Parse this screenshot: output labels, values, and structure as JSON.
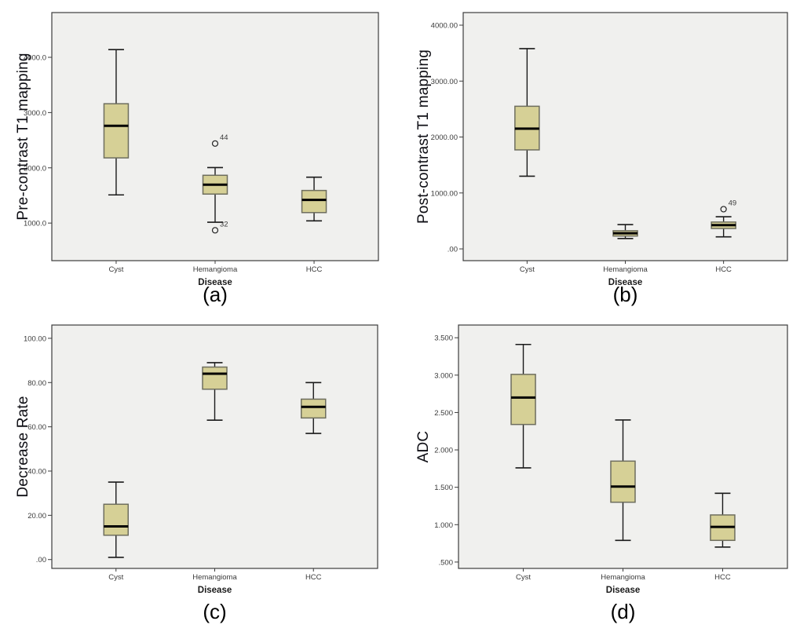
{
  "colors": {
    "page_bg": "#ffffff",
    "plot_bg": "#f0f0ee",
    "frame": "#3c3c3c",
    "box_fill": "#d6d096",
    "box_border": "#6e6e5e",
    "median": "#000000",
    "whisker": "#1a1a1a",
    "tick_text": "#3a3a3a",
    "outlier_stroke": "#222222"
  },
  "chart_data": [
    {
      "id": "a",
      "type": "box",
      "caption": "(a)",
      "ylabel": "Pre-contrast T1 mapping",
      "xlabel": "Disease",
      "categories": [
        "Cyst",
        "Hemangioma",
        "HCC"
      ],
      "ylim": [
        320,
        4810
      ],
      "yticks": [
        {
          "value": 1000,
          "label": "1000.0"
        },
        {
          "value": 2000,
          "label": "2000.0"
        },
        {
          "value": 3000,
          "label": "3000.0"
        },
        {
          "value": 4000,
          "label": "4000.0"
        }
      ],
      "boxes": [
        {
          "category": "Cyst",
          "whisker_low": 1510,
          "q1": 2180,
          "median": 2760,
          "q3": 3160,
          "whisker_high": 4140,
          "outliers": []
        },
        {
          "category": "Hemangioma",
          "whisker_low": 1015,
          "q1": 1525,
          "median": 1695,
          "q3": 1865,
          "whisker_high": 2005,
          "outliers": [
            {
              "value": 2440,
              "label": "44"
            },
            {
              "value": 870,
              "label": "32"
            }
          ]
        },
        {
          "category": "HCC",
          "whisker_low": 1040,
          "q1": 1190,
          "median": 1420,
          "q3": 1590,
          "whisker_high": 1830,
          "outliers": []
        }
      ]
    },
    {
      "id": "b",
      "type": "box",
      "caption": "(b)",
      "ylabel": "Post-contrast T1 mapping",
      "xlabel": "Disease",
      "categories": [
        "Cyst",
        "Hemangioma",
        "HCC"
      ],
      "ylim": [
        -210,
        4225
      ],
      "yticks": [
        {
          "value": 0,
          "label": ".00"
        },
        {
          "value": 1000,
          "label": "1000.00"
        },
        {
          "value": 2000,
          "label": "2000.00"
        },
        {
          "value": 3000,
          "label": "3000.00"
        },
        {
          "value": 4000,
          "label": "4000.00"
        }
      ],
      "boxes": [
        {
          "category": "Cyst",
          "whisker_low": 1300,
          "q1": 1770,
          "median": 2150,
          "q3": 2550,
          "whisker_high": 3580,
          "outliers": []
        },
        {
          "category": "Hemangioma",
          "whisker_low": 185,
          "q1": 230,
          "median": 280,
          "q3": 325,
          "whisker_high": 435,
          "outliers": []
        },
        {
          "category": "HCC",
          "whisker_low": 215,
          "q1": 365,
          "median": 425,
          "q3": 480,
          "whisker_high": 575,
          "outliers": [
            {
              "value": 710,
              "label": "49"
            }
          ]
        }
      ]
    },
    {
      "id": "c",
      "type": "box",
      "caption": "(c)",
      "ylabel": "Decrease Rate",
      "xlabel": "Disease",
      "categories": [
        "Cyst",
        "Hemangioma",
        "HCC"
      ],
      "ylim": [
        -4,
        106
      ],
      "yticks": [
        {
          "value": 0,
          "label": ".00"
        },
        {
          "value": 20,
          "label": "20.00"
        },
        {
          "value": 40,
          "label": "40.00"
        },
        {
          "value": 60,
          "label": "60.00"
        },
        {
          "value": 80,
          "label": "80.00"
        },
        {
          "value": 100,
          "label": "100.00"
        }
      ],
      "boxes": [
        {
          "category": "Cyst",
          "whisker_low": 1,
          "q1": 11,
          "median": 15,
          "q3": 25,
          "whisker_high": 35,
          "outliers": []
        },
        {
          "category": "Hemangioma",
          "whisker_low": 63,
          "q1": 77,
          "median": 84,
          "q3": 87,
          "whisker_high": 89,
          "outliers": []
        },
        {
          "category": "HCC",
          "whisker_low": 57,
          "q1": 64,
          "median": 69,
          "q3": 72.5,
          "whisker_high": 80,
          "outliers": []
        }
      ]
    },
    {
      "id": "d",
      "type": "box",
      "caption": "(d)",
      "ylabel": "ADC",
      "xlabel": "Disease",
      "categories": [
        "Cyst",
        "Hemangioma",
        "HCC"
      ],
      "ylim": [
        0.415,
        3.67
      ],
      "yticks": [
        {
          "value": 0.5,
          "label": ".500"
        },
        {
          "value": 1.0,
          "label": "1.000"
        },
        {
          "value": 1.5,
          "label": "1.500"
        },
        {
          "value": 2.0,
          "label": "2.000"
        },
        {
          "value": 2.5,
          "label": "2.500"
        },
        {
          "value": 3.0,
          "label": "3.000"
        },
        {
          "value": 3.5,
          "label": "3.500"
        }
      ],
      "boxes": [
        {
          "category": "Cyst",
          "whisker_low": 1.76,
          "q1": 2.34,
          "median": 2.7,
          "q3": 3.01,
          "whisker_high": 3.41,
          "outliers": []
        },
        {
          "category": "Hemangioma",
          "whisker_low": 0.79,
          "q1": 1.3,
          "median": 1.51,
          "q3": 1.85,
          "whisker_high": 2.4,
          "outliers": []
        },
        {
          "category": "HCC",
          "whisker_low": 0.7,
          "q1": 0.79,
          "median": 0.97,
          "q3": 1.13,
          "whisker_high": 1.42,
          "outliers": []
        }
      ]
    }
  ]
}
